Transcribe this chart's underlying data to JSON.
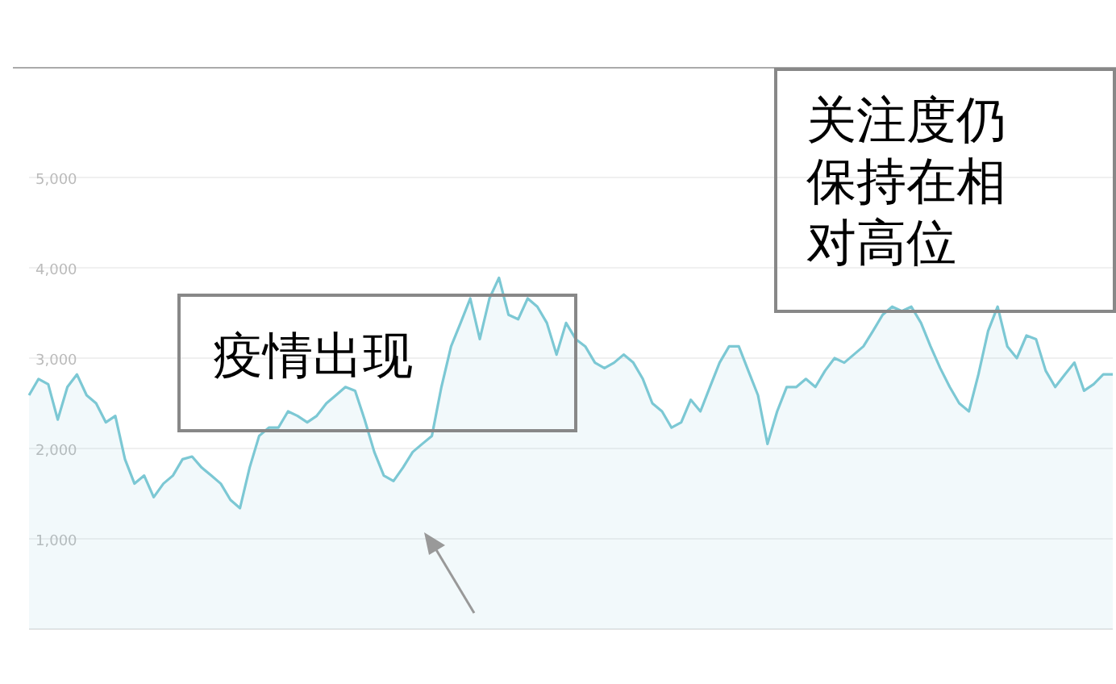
{
  "chart_data": {
    "type": "area",
    "categories": [
      null,
      null,
      null,
      null,
      null,
      null,
      null,
      null,
      null,
      null,
      null,
      null,
      null,
      null,
      null,
      null,
      null,
      null,
      null,
      null,
      null,
      null,
      null,
      null,
      null,
      null,
      null,
      null,
      null,
      null,
      null,
      null,
      null,
      null,
      null,
      null,
      null,
      null,
      null,
      null,
      null,
      null,
      null,
      null,
      null,
      null,
      null,
      null,
      null,
      null,
      null,
      null,
      null,
      null,
      null,
      null,
      null,
      null,
      null,
      null,
      null,
      null,
      null,
      null,
      null,
      null,
      null,
      null,
      null,
      null,
      null,
      null,
      null,
      null,
      null,
      null,
      null,
      null,
      null,
      null,
      null,
      null,
      null,
      null,
      null,
      null,
      null,
      null,
      null,
      null,
      null,
      null,
      null,
      null,
      null,
      null,
      null,
      null,
      null,
      null,
      null,
      null,
      null,
      null,
      null,
      null,
      null,
      null,
      null,
      null,
      null,
      null,
      null,
      null
    ],
    "series": [
      {
        "color": "#7cc8d4",
        "values": [
          2590,
          2770,
          2710,
          2320,
          2680,
          2820,
          2590,
          2500,
          2290,
          2360,
          1880,
          1610,
          1700,
          1460,
          1610,
          1700,
          1880,
          1910,
          1790,
          1700,
          1610,
          1430,
          1340,
          1790,
          2140,
          2230,
          2230,
          2410,
          2360,
          2290,
          2360,
          2500,
          2590,
          2680,
          2640,
          2320,
          1960,
          1700,
          1640,
          1790,
          1960,
          2050,
          2140,
          2680,
          3130,
          3390,
          3660,
          3210,
          3660,
          3890,
          3480,
          3430,
          3660,
          3570,
          3390,
          3040,
          3390,
          3210,
          3130,
          2950,
          2890,
          2950,
          3040,
          2950,
          2770,
          2500,
          2410,
          2230,
          2290,
          2540,
          2410,
          2680,
          2950,
          3130,
          3130,
          2860,
          2590,
          2050,
          2410,
          2680,
          2680,
          2770,
          2680,
          2860,
          3000,
          2950,
          3040,
          3130,
          3300,
          3480,
          3570,
          3520,
          3570,
          3390,
          3130,
          2890,
          2680,
          2500,
          2410,
          2820,
          3300,
          3570,
          3130,
          3000,
          3250,
          3210,
          2860,
          2680,
          2820,
          2950,
          2640,
          2710,
          2820,
          2820
        ]
      }
    ],
    "ylim": [
      0,
      5000
    ],
    "yticks": [
      {
        "value": 1000,
        "label": "1,000"
      },
      {
        "value": 2000,
        "label": "2,000"
      },
      {
        "value": 3000,
        "label": "3,000"
      },
      {
        "value": 4000,
        "label": "4,000"
      },
      {
        "value": 5000,
        "label": "5,000"
      }
    ],
    "grid": "y",
    "annotations": [
      "疫情出现",
      "关注度仍保持在相对高位"
    ]
  }
}
